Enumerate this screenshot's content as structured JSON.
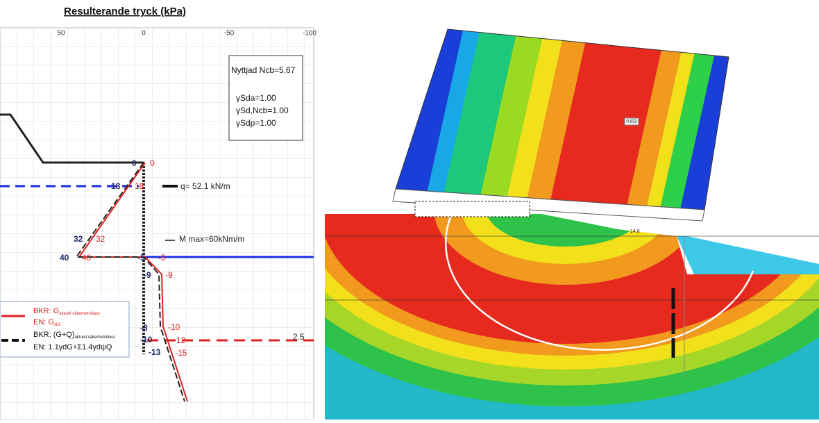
{
  "header": {
    "title": "Resulterande tryck (kPa)"
  },
  "axis": {
    "ticks": [
      "50",
      "0",
      "-50",
      "-100"
    ]
  },
  "info_box": {
    "lines": [
      "Nyttjad Ncb=5.67",
      "γSda=1.00",
      "γSd,Ncb=1.00",
      "γSdp=1.00"
    ]
  },
  "annotations": {
    "design": [
      "0",
      "18",
      "32",
      "40",
      "-5",
      "-9",
      "-8",
      "-10",
      "-13"
    ],
    "characteristic": [
      "0",
      "18",
      "32",
      "40",
      "-5",
      "-9",
      "-10",
      "-12",
      "-15"
    ],
    "load": "q= 52.1 kN/m",
    "moment": "M max=60kNm/m",
    "level": "2.5"
  },
  "legend": {
    "rows": [
      {
        "bkr": "BKR: G",
        "bkr_sub": "aktuell säkerhetsklass",
        "en": "EN: G",
        "en_sub": "sk2"
      },
      {
        "bkr": "BKR: (G+Q)",
        "bkr_sub": "aktuell säkerhetsklass",
        "en": "EN:  1.1γdG+Σ1.4γdψQ"
      }
    ]
  },
  "fem": {
    "labels": [
      "0.833",
      "14.8"
    ]
  }
}
